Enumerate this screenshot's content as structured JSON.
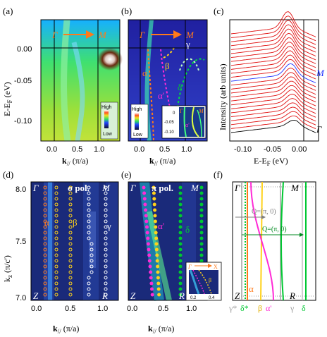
{
  "panels": {
    "a": {
      "label": "(a)",
      "path_label": "Γ",
      "path_label_end": "M",
      "yticks": [
        "0.00",
        "-0.05",
        "-0.10"
      ],
      "xticks": [
        "0.0",
        "0.5",
        "1.0"
      ],
      "ylabel": "E-E",
      "ylabel_sub": "F",
      "ylabel_unit": " (eV)",
      "xlabel": "k",
      "xlabel_sub": "//",
      "xlabel_unit": " (π/a)",
      "colorbar_high": "High",
      "colorbar_low": "Low"
    },
    "b": {
      "label": "(b)",
      "path_label": "Γ",
      "path_label_end": "M",
      "gamma": "γ",
      "alpha": "α",
      "beta": "β",
      "alpha_prime": "α'",
      "delta": "δ",
      "xticks": [
        "0.0",
        "0.5",
        "1.0"
      ],
      "xlabel": "k",
      "xlabel_sub": "//",
      "xlabel_unit": " (π/a)",
      "colorbar_high": "High",
      "colorbar_low": "Low",
      "inset_yticks": [
        "0",
        "-0.05",
        "-0.10"
      ],
      "inset_gamma": "Γ",
      "inset_m": "M",
      "inset_alpha_prime": "α'"
    },
    "c": {
      "label": "(c)",
      "ylabel": "Intensity (arb units)",
      "xlabel": "E-E",
      "xlabel_sub": "F",
      "xlabel_unit": " (eV)",
      "xticks": [
        "-0.10",
        "-0.05",
        "0.00"
      ],
      "label_m": "M",
      "label_gamma": "Γ"
    },
    "d": {
      "label": "(d)",
      "gamma": "Γ",
      "m": "M",
      "z": "Z",
      "r": "R",
      "pol": "σ  pol.",
      "alpha": "α",
      "beta": "β",
      "gamma_band": "γ",
      "yticks": [
        "8.0",
        "7.5",
        "7.0"
      ],
      "xticks": [
        "0.0",
        "0.5",
        "1.0"
      ],
      "ylabel": "k",
      "ylabel_sub": "z",
      "ylabel_unit": " (π/c')",
      "xlabel": "k",
      "xlabel_sub": "//",
      "xlabel_unit": " (π/a)"
    },
    "e": {
      "label": "(e)",
      "gamma": "Γ",
      "m": "M",
      "z": "Z",
      "r": "R",
      "pol": "π  pol.",
      "alpha_prime": "α'",
      "delta": "δ",
      "xticks": [
        "0.0",
        "0.5",
        "1.0"
      ],
      "xlabel": "k",
      "xlabel_sub": "//",
      "xlabel_unit": " (π/a)",
      "inset_top_left": "Γ",
      "inset_top_right": "X",
      "inset_beta": "β",
      "inset_xticks": [
        "0.2",
        "0.4"
      ]
    },
    "f": {
      "label": "(f)",
      "gamma": "Γ",
      "m": "M",
      "z": "Z",
      "r": "R",
      "q1": "Q=(π, 0)",
      "q2": "Q=(π, 0)",
      "alpha": "α",
      "bottom_labels": {
        "gamma_star": "γ*",
        "delta_star": "δ*",
        "beta": "β",
        "alpha_prime": "α'",
        "gamma": "γ",
        "delta": "δ"
      }
    }
  },
  "colors": {
    "orange": "#ff7a1a",
    "yellow": "#ffd21a",
    "green": "#00c832",
    "magenta": "#ff2bd6",
    "red_curves": "#e01010",
    "blue_curve": "#2030ff",
    "navy_bg": "#1a2a7a"
  }
}
